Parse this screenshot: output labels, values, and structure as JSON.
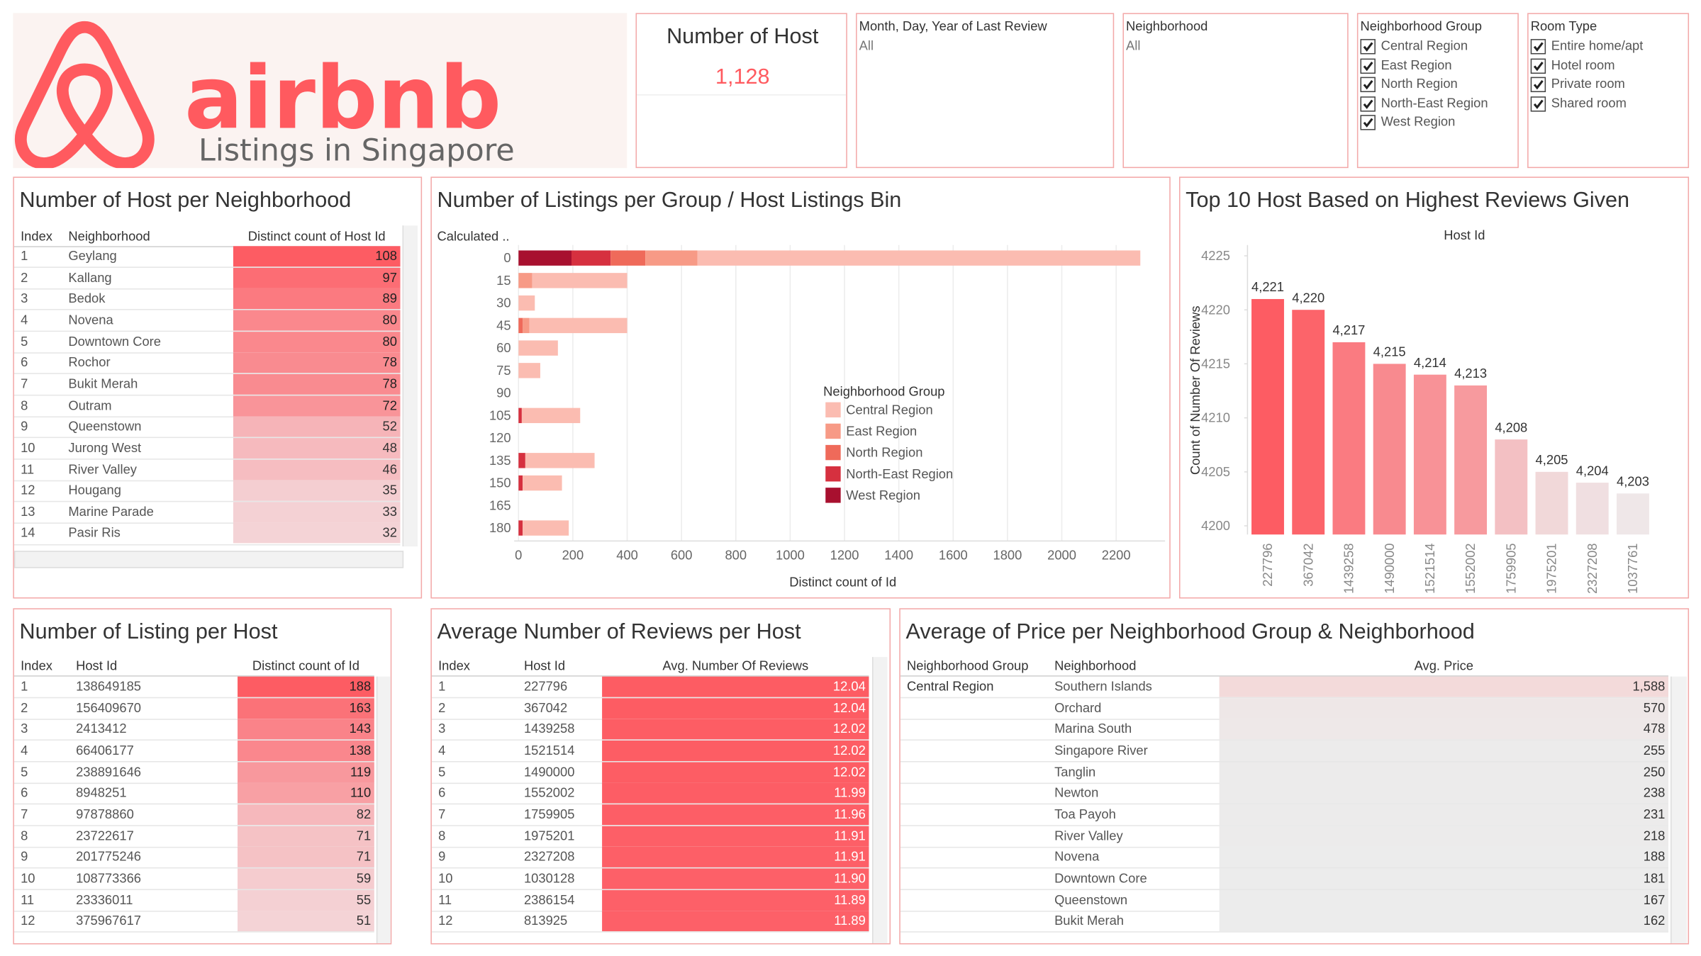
{
  "header": {
    "brand": "airbnb",
    "subtitle": "Listings in Singapore"
  },
  "kpi": {
    "title": "Number of Host",
    "value": "1,128"
  },
  "filters": [
    {
      "title": "Month, Day, Year of Last Review",
      "value": "All"
    },
    {
      "title": "Neighborhood",
      "value": "All"
    },
    {
      "title": "Neighborhood Group",
      "checked": true,
      "options": [
        "Central Region",
        "East Region",
        "North Region",
        "North-East Region",
        "West Region"
      ]
    },
    {
      "title": "Room Type",
      "checked": true,
      "options": [
        "Entire home/apt",
        "Hotel room",
        "Private room",
        "Shared room"
      ]
    }
  ],
  "neighborhood_hosts": {
    "title": "Number of Host per Neighborhood",
    "columns": [
      "Index",
      "Neighborhood",
      "Distinct count of Host Id"
    ],
    "color_range": [
      "#f4d3d6",
      "#fd5c63"
    ],
    "rows": [
      [
        1,
        "Geylang",
        108
      ],
      [
        2,
        "Kallang",
        97
      ],
      [
        3,
        "Bedok",
        89
      ],
      [
        4,
        "Novena",
        80
      ],
      [
        5,
        "Downtown Core",
        80
      ],
      [
        6,
        "Rochor",
        78
      ],
      [
        7,
        "Bukit Merah",
        78
      ],
      [
        8,
        "Outram",
        72
      ],
      [
        9,
        "Queenstown",
        52
      ],
      [
        10,
        "Jurong West",
        48
      ],
      [
        11,
        "River Valley",
        46
      ],
      [
        12,
        "Hougang",
        35
      ],
      [
        13,
        "Marine Parade",
        33
      ],
      [
        14,
        "Pasir Ris",
        32
      ]
    ]
  },
  "host_listings": {
    "title": "Number of Listing per Host",
    "columns": [
      "Index",
      "Host Id",
      "Distinct count of Id"
    ],
    "color_range": [
      "#f4d3d6",
      "#fd5c63"
    ],
    "rows": [
      [
        1,
        138649185,
        188
      ],
      [
        2,
        156409670,
        163
      ],
      [
        3,
        2413412,
        143
      ],
      [
        4,
        66406177,
        138
      ],
      [
        5,
        238891646,
        119
      ],
      [
        6,
        8948251,
        110
      ],
      [
        7,
        97878860,
        82
      ],
      [
        8,
        23722617,
        71
      ],
      [
        9,
        201775246,
        71
      ],
      [
        10,
        108773366,
        59
      ],
      [
        11,
        23336011,
        55
      ],
      [
        12,
        375967617,
        51
      ]
    ]
  },
  "host_reviews": {
    "title": "Average Number of Reviews per Host",
    "columns": [
      "Index",
      "Host Id",
      "Avg. Number Of Reviews"
    ],
    "color_range": [
      "#fd6068",
      "#fd5c63"
    ],
    "rows": [
      [
        1,
        227796,
        "12.04"
      ],
      [
        2,
        367042,
        "12.04"
      ],
      [
        3,
        1439258,
        "12.02"
      ],
      [
        4,
        1521514,
        "12.02"
      ],
      [
        5,
        1490000,
        "12.02"
      ],
      [
        6,
        1552002,
        "11.99"
      ],
      [
        7,
        1759905,
        "11.96"
      ],
      [
        8,
        1975201,
        "11.91"
      ],
      [
        9,
        2327208,
        "11.91"
      ],
      [
        10,
        1030128,
        "11.90"
      ],
      [
        11,
        2386154,
        "11.89"
      ],
      [
        12,
        813925,
        "11.89"
      ]
    ]
  },
  "price_by_neighborhood": {
    "title": "Average of Price per Neighborhood Group & Neighborhood",
    "columns": [
      "Neighborhood Group",
      "Neighborhood",
      "Avg. Price"
    ],
    "color_range": [
      "#ececec",
      "#f3dada"
    ],
    "rows": [
      [
        "Central Region",
        "Southern Islands",
        "1,588"
      ],
      [
        null,
        "Orchard",
        "570"
      ],
      [
        null,
        "Marina South",
        "478"
      ],
      [
        null,
        "Singapore River",
        "255"
      ],
      [
        null,
        "Tanglin",
        "250"
      ],
      [
        null,
        "Newton",
        "238"
      ],
      [
        null,
        "Toa Payoh",
        "231"
      ],
      [
        null,
        "River Valley",
        "218"
      ],
      [
        null,
        "Novena",
        "188"
      ],
      [
        null,
        "Downtown Core",
        "181"
      ],
      [
        null,
        "Queenstown",
        "167"
      ],
      [
        null,
        "Bukit Merah",
        "162"
      ]
    ]
  },
  "chart_data": [
    {
      "type": "stacked_barh",
      "title": "Number of Listings per Group / Host Listings Bin",
      "y_label": "Calculated ..",
      "x_label": "Distinct count of Id",
      "legend_title": "Neighborhood Group",
      "legend": "center",
      "grid": true,
      "categories": [
        0,
        15,
        30,
        45,
        60,
        75,
        90,
        105,
        120,
        135,
        150,
        165,
        180
      ],
      "xlim": [
        0,
        2380
      ],
      "xticks": [
        0,
        200,
        400,
        600,
        800,
        1000,
        1200,
        1400,
        1600,
        1800,
        2000,
        2200
      ],
      "series": [
        {
          "name": "West Region",
          "color": "#a8102f",
          "values": [
            195,
            0,
            0,
            0,
            0,
            0,
            0,
            0,
            0,
            0,
            0,
            0,
            0
          ]
        },
        {
          "name": "North-East Region",
          "color": "#d6303f",
          "values": [
            144,
            0,
            0,
            0,
            0,
            0,
            0,
            12,
            0,
            25,
            15,
            0,
            15
          ]
        },
        {
          "name": "North Region",
          "color": "#ef6a5a",
          "values": [
            128,
            0,
            0,
            15,
            0,
            0,
            0,
            0,
            0,
            0,
            0,
            0,
            0
          ]
        },
        {
          "name": "East Region",
          "color": "#f79a86",
          "values": [
            192,
            50,
            0,
            25,
            0,
            0,
            0,
            0,
            0,
            0,
            0,
            0,
            0
          ]
        },
        {
          "name": "Central Region",
          "color": "#fbbcb1",
          "values": [
            1630,
            350,
            60,
            360,
            145,
            80,
            0,
            215,
            0,
            255,
            145,
            0,
            170
          ]
        }
      ]
    },
    {
      "type": "bar",
      "title": "Top 10 Host Based on Highest Reviews Given",
      "x_label": "Host Id",
      "y_label": "Count of Number Of Reviews",
      "grid": false,
      "categories": [
        "227796",
        "367042",
        "1439258",
        "1490000",
        "1521514",
        "1552002",
        "1759905",
        "1975201",
        "2327208",
        "1037761"
      ],
      "values": [
        4221,
        4220,
        4217,
        4215,
        4214,
        4213,
        4208,
        4205,
        4204,
        4203
      ],
      "value_labels": [
        "4,221",
        "4,220",
        "4,217",
        "4,215",
        "4,214",
        "4,213",
        "4,208",
        "4,205",
        "4,204",
        "4,203"
      ],
      "color_range": [
        "#efe7e8",
        "#fd5c63"
      ],
      "ylim": [
        4199.2,
        4226
      ],
      "yticks": [
        4200,
        4205,
        4210,
        4215,
        4220,
        4225
      ]
    }
  ]
}
